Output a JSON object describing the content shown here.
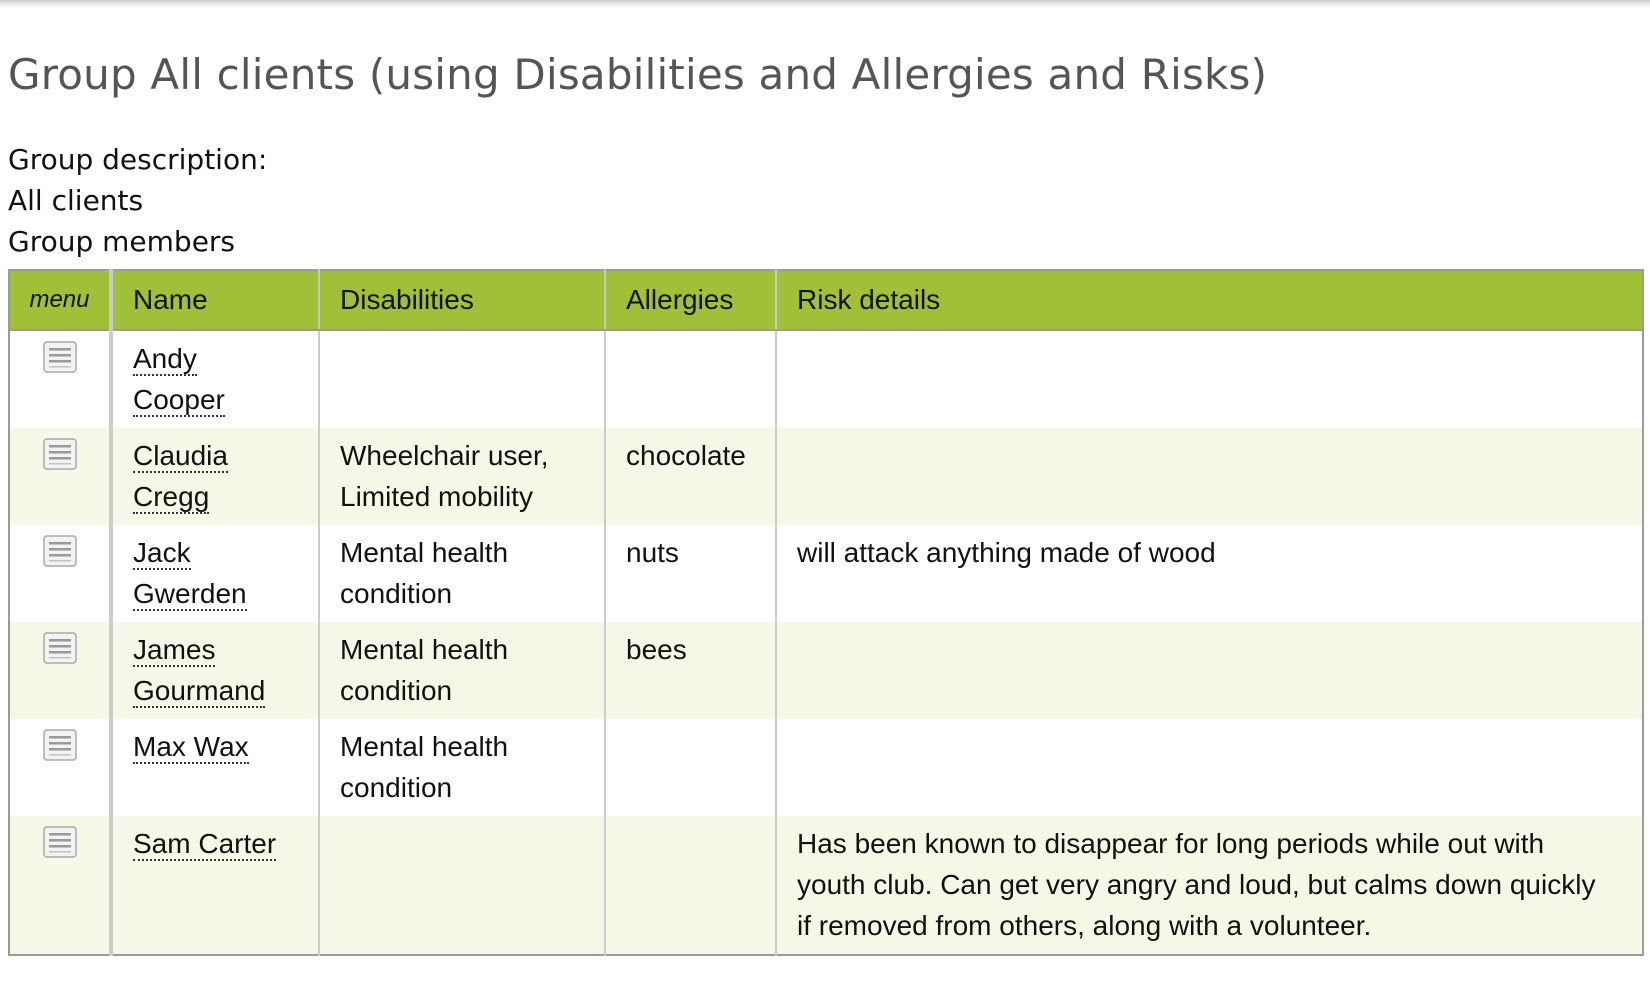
{
  "page": {
    "title": "Group All clients (using Disabilities and Allergies and Risks)",
    "description_label": "Group description:",
    "description": "All clients",
    "members_label": "Group members"
  },
  "table": {
    "columns": [
      "menu",
      "Name",
      "Disabilities",
      "Allergies",
      "Risk details"
    ],
    "rows": [
      {
        "first": "Andy",
        "last": "Cooper",
        "disabilities": [
          "",
          ""
        ],
        "allergies": "",
        "risk": [
          "",
          "",
          ""
        ]
      },
      {
        "first": "Claudia",
        "last": "Cregg",
        "disabilities": [
          "Wheelchair user,",
          "Limited mobility"
        ],
        "allergies": "chocolate",
        "risk": [
          "",
          "",
          ""
        ]
      },
      {
        "first": "Jack",
        "last": "Gwerden",
        "disabilities": [
          "Mental health",
          "condition"
        ],
        "allergies": "nuts",
        "risk": [
          "will attack anything made of wood",
          "",
          ""
        ]
      },
      {
        "first": "James",
        "last": "Gourmand",
        "disabilities": [
          "Mental health",
          "condition"
        ],
        "allergies": "bees",
        "risk": [
          "",
          "",
          ""
        ]
      },
      {
        "first": "Max Wax",
        "last": "",
        "disabilities": [
          "Mental health",
          "condition"
        ],
        "allergies": "",
        "risk": [
          "",
          "",
          ""
        ]
      },
      {
        "first": "Sam Carter",
        "last": "",
        "disabilities": [
          "",
          ""
        ],
        "allergies": "",
        "risk": [
          "Has been known to disappear for long periods while out with",
          "youth club. Can get very angry and loud, but calms down quickly",
          "if removed from others, along with a volunteer."
        ]
      }
    ]
  },
  "icons": {
    "row_menu": "menu-icon"
  },
  "colors": {
    "header_bg": "#a0c037",
    "row_alt_bg": "#f5f8e7",
    "title_color": "#555555"
  }
}
